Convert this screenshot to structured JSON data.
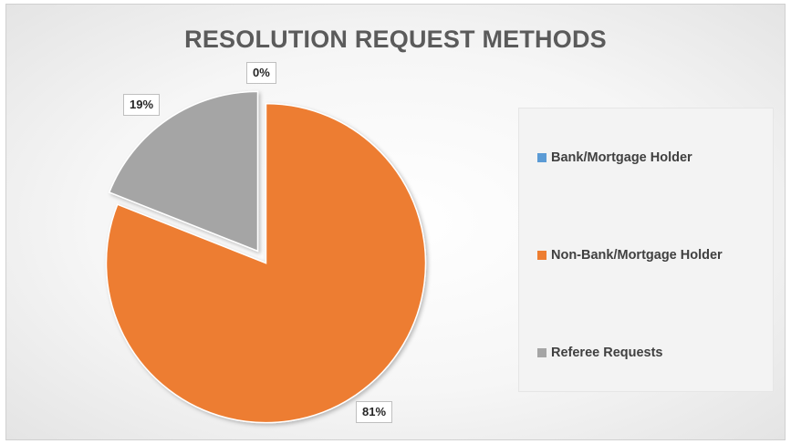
{
  "chart_data": {
    "type": "pie",
    "title": "RESOLUTION REQUEST METHODS",
    "categories": [
      "Bank/Mortgage Holder",
      "Non-Bank/Mortgage Holder",
      "Referee Requests"
    ],
    "values": [
      0,
      81,
      19
    ],
    "data_labels": [
      "0%",
      "81%",
      "19%"
    ],
    "colors": [
      "#5b9bd5",
      "#ed7d31",
      "#a5a5a5"
    ],
    "legend_position": "right",
    "exploded": true
  }
}
